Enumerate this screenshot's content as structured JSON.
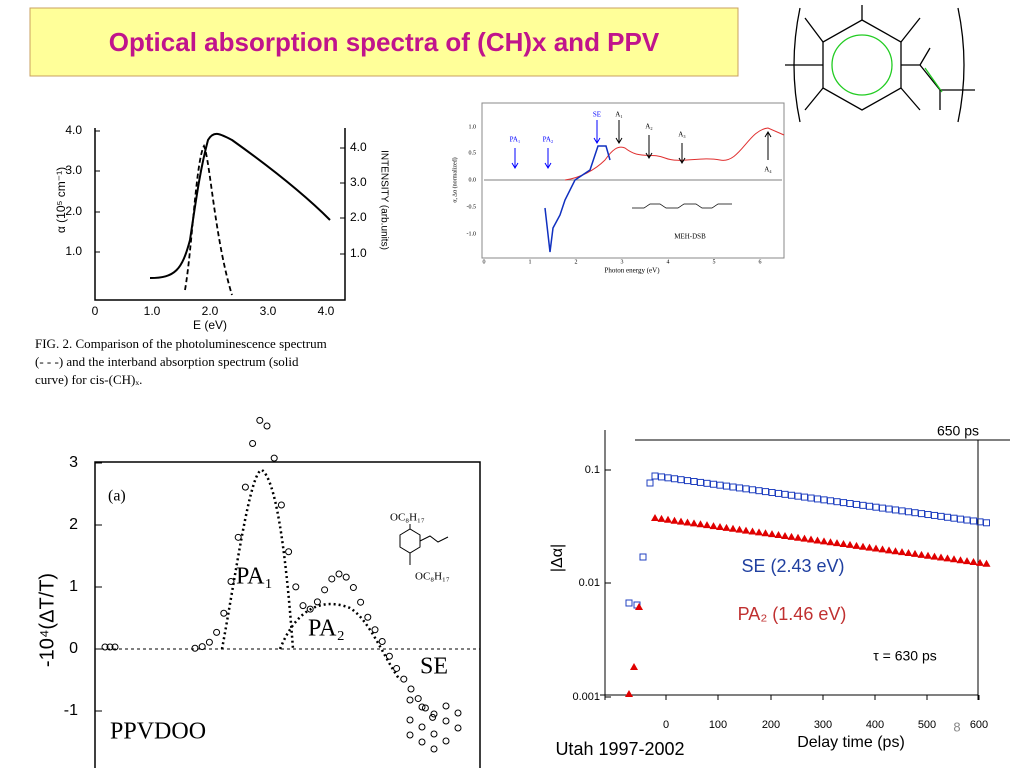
{
  "title": "Optical absorption spectra of (CH)x and PPV",
  "footer": "Utah 1997-2002",
  "page_number": "8",
  "fig1": {
    "yticks": [
      "1.0",
      "2.0",
      "3.0",
      "4.0"
    ],
    "y2ticks": [
      "1.0",
      "2.0",
      "3.0",
      "4.0"
    ],
    "xticks": [
      "0",
      "1.0",
      "2.0",
      "3.0",
      "4.0"
    ],
    "xlabel": "E (eV)",
    "ylabel": "α (10⁵ cm⁻¹)",
    "y2label": "INTENSITY (arb.units)",
    "caption": [
      "FIG. 2.  Comparison of the photoluminescence spectrum",
      "(- - -) and the interband absorption spectrum (solid",
      "curve) for cis-(CH)ₓ."
    ]
  },
  "fig2": {
    "yticks": [
      "1.0",
      "0.5",
      "0.0",
      "-0.5",
      "-1.0"
    ],
    "xticks": [
      "0",
      "1",
      "2",
      "3",
      "4",
      "5",
      "6"
    ],
    "xlabel": "Photon energy (eV)",
    "ylabel": "α, Δα (normalized)",
    "labels": [
      "SE",
      "A₁",
      "A₂",
      "A₃",
      "A₄",
      "PA₁",
      "PA₂"
    ],
    "molecule": "MEH-DSB"
  },
  "fig3": {
    "panel": "(a)",
    "yticks": [
      "3",
      "2",
      "1",
      "0",
      "-1"
    ],
    "ylabel": "-10⁴(ΔT/T)",
    "labels": [
      "PA₁",
      "PA₂",
      "SE"
    ],
    "material": "PPVDOO",
    "substituents": [
      "OC₈H₁₇",
      "OC₈H₁₇"
    ]
  },
  "fig4": {
    "yticks": [
      "0.1",
      "0.01",
      "0.001"
    ],
    "xticks": [
      "0",
      "100",
      "200",
      "300",
      "400",
      "500",
      "600"
    ],
    "xlabel": "Delay time (ps)",
    "ylabel": "|Δα|",
    "top_label": "650 ps",
    "se_label": "SE (2.43 eV)",
    "pa_label": "PA₂ (1.46 eV)",
    "tau_label": "τ = 630 ps"
  }
}
